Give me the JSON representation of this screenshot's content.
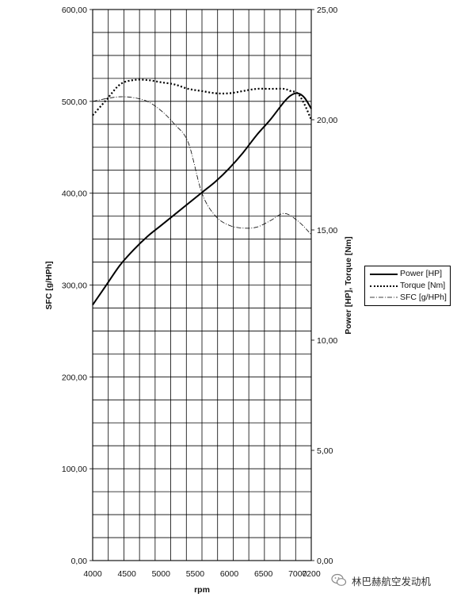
{
  "chart_data": {
    "type": "line",
    "xlabel": "rpm",
    "ylabel_left": "SFC [g/HPh]",
    "ylabel_right": "Power [HP], Torque [Nm]",
    "xlim": [
      4000,
      7200
    ],
    "ylim_left": [
      0,
      600
    ],
    "ylim_right": [
      0,
      25
    ],
    "x_ticks": [
      "4000",
      "4500",
      "5000",
      "5500",
      "6000",
      "6500",
      "7000",
      "7200"
    ],
    "x_tick_values": [
      4000,
      4500,
      5000,
      5500,
      6000,
      6500,
      7000,
      7200
    ],
    "y_left_ticks": [
      "0,00",
      "100,00",
      "200,00",
      "300,00",
      "400,00",
      "500,00",
      "600,00"
    ],
    "y_left_tick_values": [
      0,
      100,
      200,
      300,
      400,
      500,
      600
    ],
    "y_right_ticks": [
      "0,00",
      "5,00",
      "10,00",
      "15,00",
      "20,00",
      "25,00"
    ],
    "y_right_tick_values": [
      0,
      5,
      10,
      15,
      20,
      25
    ],
    "grid": true,
    "legend_position": "right",
    "series": [
      {
        "name": "Power [HP]",
        "axis": "right",
        "style": "solid",
        "color": "#000000",
        "x": [
          4000,
          4200,
          4400,
          4600,
          4800,
          5000,
          5200,
          5400,
          5600,
          5800,
          6000,
          6200,
          6400,
          6600,
          6800,
          6900,
          7000,
          7100,
          7200
        ],
        "y": [
          11.6,
          12.5,
          13.4,
          14.1,
          14.7,
          15.2,
          15.7,
          16.2,
          16.7,
          17.2,
          17.8,
          18.5,
          19.3,
          20.0,
          20.8,
          21.1,
          21.2,
          21.0,
          20.5
        ]
      },
      {
        "name": "Torque [Nm]",
        "axis": "right",
        "style": "dotted",
        "color": "#000000",
        "x": [
          4000,
          4200,
          4400,
          4600,
          4800,
          5000,
          5200,
          5400,
          5600,
          5800,
          6000,
          6200,
          6400,
          6600,
          6800,
          6900,
          7000,
          7100,
          7200
        ],
        "y": [
          20.2,
          20.9,
          21.6,
          21.8,
          21.8,
          21.7,
          21.6,
          21.4,
          21.3,
          21.2,
          21.2,
          21.3,
          21.4,
          21.4,
          21.4,
          21.3,
          21.2,
          20.7,
          20.0
        ]
      },
      {
        "name": "SFC [g/HPh]",
        "axis": "left",
        "style": "dashdot",
        "color": "#000000",
        "x": [
          4000,
          4200,
          4400,
          4600,
          4800,
          5000,
          5200,
          5400,
          5600,
          5800,
          6000,
          6200,
          6400,
          6600,
          6800,
          7000,
          7200
        ],
        "y": [
          500,
          503,
          505,
          504,
          500,
          490,
          475,
          455,
          400,
          375,
          365,
          362,
          363,
          370,
          378,
          370,
          355
        ]
      }
    ]
  },
  "watermark": {
    "text": "林巴赫航空发动机",
    "icon": "wechat-icon"
  }
}
